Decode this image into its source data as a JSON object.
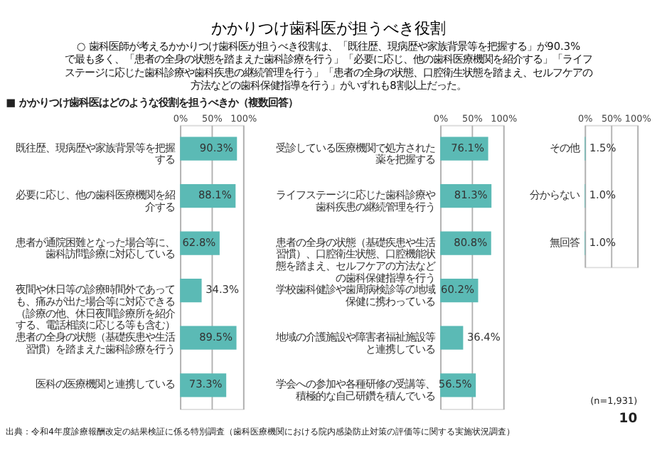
{
  "chart_data": [
    {
      "type": "bar",
      "orientation": "horizontal",
      "title": "かかりつけ歯科医が担うべき役割",
      "subtitle": "○ 歯科医師が考えるかかりつけ歯科医が担うべき役割は、「既往歴、現病歴や家族背景等を把握する」が90.3%で最も多く、「患者の全身の状態を踏まえた歯科診療を行う」「必要に応じ、他の歯科医療機関を紹介する」「ライフステージに応じた歯科診療や歯科疾患の継続管理を行う」「患者の全身の状態、口腔衛生状態を踏まえ、セルフケアの方法などの歯科保健指導を行う」がいずれも8割以上だった。",
      "annotations": [
        "■ かかりつけ歯科医はどのような役割を担うべきか（複数回答）",
        "出典：令和4年度診療報酬改定の結果検証に係る特別調査（歯科医療機関における院内感染防止対策の評価等に関する実施状況調査）"
      ],
      "categories": [
        "既往歴、現病歴や家族背景等を把握する",
        "必要に応じ、他の歯科医療機関を紹介する",
        "患者が通院困難となった場合等に、歯科訪問診療に対応している",
        "夜間や休日等の診療時間外であっても、痛みが出た場合等に対応できる（診療の他、休日夜間診療所を紹介する、電話相談に応じる等も含む）",
        "患者の全身の状態（基礎疾患や生活習慣）を踏まえた歯科診療を行う",
        "医科の医療機関と連携している"
      ],
      "values": [
        90.3,
        88.1,
        62.8,
        34.3,
        89.5,
        73.3
      ],
      "value_labels": [
        "90.3%",
        "88.1%",
        "62.8%",
        "34.3%",
        "89.5%",
        "73.3%"
      ],
      "color": "#5bbab5",
      "xlim": [
        0,
        100
      ],
      "xticks": [
        {
          "value": 0,
          "label": "0%"
        },
        {
          "value": 50,
          "label": "50%"
        },
        {
          "value": 100,
          "label": "100%"
        }
      ],
      "grid": "x"
    },
    {
      "type": "bar",
      "orientation": "horizontal",
      "categories": [
        "受診している医療機関で処方された薬を把握する",
        "ライフステージに応じた歯科診療や歯科疾患の継続管理を行う",
        "患者の全身の状態（基礎疾患や生活習慣）、口腔衛生状態、口腔機能状態を踏まえ、セルフケアの方法などの歯科保健指導を行う",
        "学校歯科健診や歯周病検診等の地域保健に携わっている",
        "地域の介護施設や障害者福祉施設等と連携している",
        "学会への参加や各種研修の受講等、積極的な自己研鑽を積んでいる"
      ],
      "values": [
        76.1,
        81.3,
        80.8,
        60.2,
        36.4,
        56.5
      ],
      "value_labels": [
        "76.1%",
        "81.3%",
        "80.8%",
        "60.2%",
        "36.4%",
        "56.5%"
      ],
      "color": "#5bbab5",
      "xlim": [
        0,
        100
      ],
      "xticks": [
        {
          "value": 0,
          "label": "0%"
        },
        {
          "value": 50,
          "label": "50%"
        },
        {
          "value": 100,
          "label": "100%"
        }
      ],
      "grid": "x"
    },
    {
      "type": "bar",
      "orientation": "horizontal",
      "annotations": [
        "(n=1,931)",
        "10"
      ],
      "categories": [
        "その他",
        "分からない",
        "無回答"
      ],
      "values": [
        1.5,
        1.0,
        1.0
      ],
      "value_labels": [
        "1.5%",
        "1.0%",
        "1.0%"
      ],
      "color": "#5bbab5",
      "xlim": [
        0,
        100
      ],
      "xticks": [
        {
          "value": 0,
          "label": "0%"
        },
        {
          "value": 50,
          "label": "50%"
        },
        {
          "value": 100,
          "label": "100%"
        }
      ],
      "grid": "x"
    }
  ]
}
